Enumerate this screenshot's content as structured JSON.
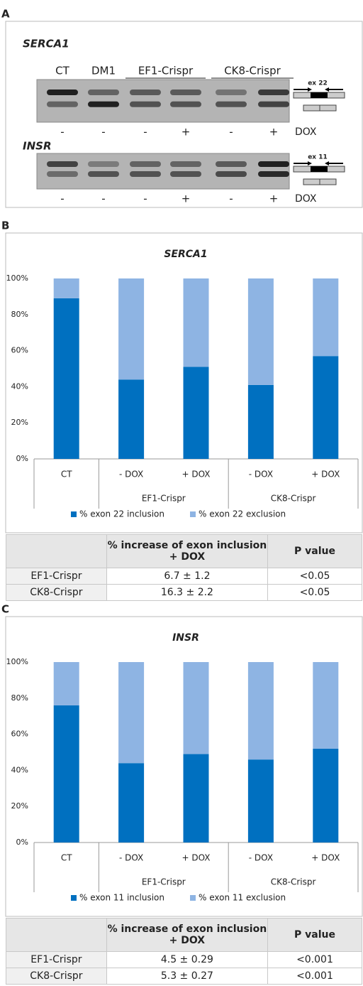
{
  "panel_labels": [
    "A",
    "B",
    "C"
  ],
  "gel": {
    "lanes": [
      "CT",
      "DM1",
      "EF1-Crispr",
      "CK8-Crispr"
    ],
    "blots": [
      {
        "name": "SERCA1",
        "exon": "ex 22",
        "dox": [
          "-",
          "-",
          "-",
          "+",
          "-",
          "+"
        ],
        "dox_label": "DOX"
      },
      {
        "name": "INSR",
        "exon": "ex 11",
        "dox": [
          "-",
          "-",
          "-",
          "+",
          "-",
          "+"
        ],
        "dox_label": "DOX"
      }
    ]
  },
  "chart_data": [
    {
      "type": "bar",
      "stacked": true,
      "title": "SERCA1",
      "categories": [
        "CT",
        "- DOX",
        "+ DOX",
        "- DOX",
        "+ DOX"
      ],
      "category_groups": [
        null,
        "EF1-Crispr",
        "EF1-Crispr",
        "CK8-Crispr",
        "CK8-Crispr"
      ],
      "series": [
        {
          "name": "% exon 22 inclusion",
          "color": "#0070c0",
          "values": [
            89,
            44,
            51,
            41,
            57
          ]
        },
        {
          "name": "% exon 22 exclusion",
          "color": "#8eb4e3",
          "values": [
            11,
            56,
            49,
            59,
            43
          ]
        }
      ],
      "ylim": [
        0,
        100
      ],
      "yticks": [
        {
          "value": 0,
          "label": "0%"
        },
        {
          "value": 20,
          "label": "20%"
        },
        {
          "value": 40,
          "label": "40%"
        },
        {
          "value": 60,
          "label": "60%"
        },
        {
          "value": 80,
          "label": "80%"
        },
        {
          "value": 100,
          "label": "100%"
        }
      ],
      "grid": false,
      "legend": "bottom"
    },
    {
      "type": "bar",
      "stacked": true,
      "title": "INSR",
      "categories": [
        "CT",
        "- DOX",
        "+ DOX",
        "- DOX",
        "+ DOX"
      ],
      "category_groups": [
        null,
        "EF1-Crispr",
        "EF1-Crispr",
        "CK8-Crispr",
        "CK8-Crispr"
      ],
      "series": [
        {
          "name": "% exon 11 inclusion",
          "color": "#0070c0",
          "values": [
            76,
            44,
            49,
            46,
            52
          ]
        },
        {
          "name": "% exon 11 exclusion",
          "color": "#8eb4e3",
          "values": [
            24,
            56,
            51,
            54,
            48
          ]
        }
      ],
      "ylim": [
        0,
        100
      ],
      "yticks": [
        {
          "value": 0,
          "label": "0%"
        },
        {
          "value": 20,
          "label": "20%"
        },
        {
          "value": 40,
          "label": "40%"
        },
        {
          "value": 60,
          "label": "60%"
        },
        {
          "value": 80,
          "label": "80%"
        },
        {
          "value": 100,
          "label": "100%"
        }
      ],
      "grid": false,
      "legend": "bottom"
    }
  ],
  "tables": [
    {
      "header": [
        "% increase of exon inclusion + DOX",
        "P value"
      ],
      "rows": [
        [
          "EF1-Crispr",
          "6.7 ±  1.2",
          "<0.05"
        ],
        [
          "CK8-Crispr",
          "16.3 ± 2.2",
          "<0.05"
        ]
      ]
    },
    {
      "header": [
        "% increase of exon inclusion + DOX",
        "P value"
      ],
      "rows": [
        [
          "EF1-Crispr",
          "4.5 ± 0.29",
          "<0.001"
        ],
        [
          "CK8-Crispr",
          "5.3 ± 0.27",
          "<0.001"
        ]
      ]
    }
  ]
}
